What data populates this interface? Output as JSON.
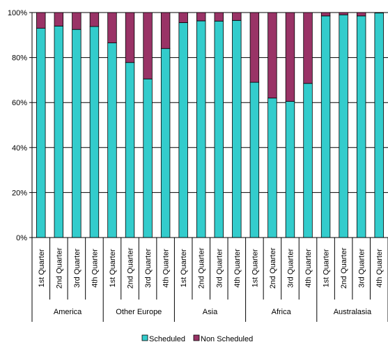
{
  "chart_data": {
    "type": "bar",
    "stacked": true,
    "percent_stacked": true,
    "groups": [
      {
        "label": "America",
        "quarters": [
          "1st Quarter",
          "2nd Quarter",
          "3rd Quarter",
          "4th Quarter"
        ]
      },
      {
        "label": "Other Europe",
        "quarters": [
          "1st Quarter",
          "2nd Quarter",
          "3rd Quarter",
          "4th Quarter"
        ]
      },
      {
        "label": "Asia",
        "quarters": [
          "1st Quarter",
          "2nd Quarter",
          "3rd Quarter",
          "4th Quarter"
        ]
      },
      {
        "label": "Africa",
        "quarters": [
          "1st Quarter",
          "2nd Quarter",
          "3rd Quarter",
          "4th Quarter"
        ]
      },
      {
        "label": "Australasia",
        "quarters": [
          "1st Quarter",
          "2nd Quarter",
          "3rd Quarter",
          "4th Quarter"
        ]
      }
    ],
    "series": [
      {
        "name": "Scheduled",
        "color": "#33CCCC",
        "values": [
          93,
          94,
          92.5,
          93.8,
          86.5,
          77.8,
          70.5,
          84,
          95.5,
          96.3,
          96.2,
          96.5,
          69,
          62,
          60.5,
          68.5,
          98.5,
          99,
          98.5,
          99.8
        ]
      },
      {
        "name": "Non Scheduled",
        "color": "#993366",
        "values": [
          7,
          6,
          7.5,
          6.2,
          13.5,
          22.2,
          29.5,
          16,
          4.5,
          3.7,
          3.8,
          3.5,
          31,
          38,
          39.5,
          31.5,
          1.5,
          1,
          1.5,
          0.2
        ]
      }
    ],
    "yticks": [
      "0%",
      "20%",
      "40%",
      "60%",
      "80%",
      "100%"
    ],
    "ylim": [
      0,
      100
    ],
    "grid": true,
    "legend_position": "bottom"
  }
}
